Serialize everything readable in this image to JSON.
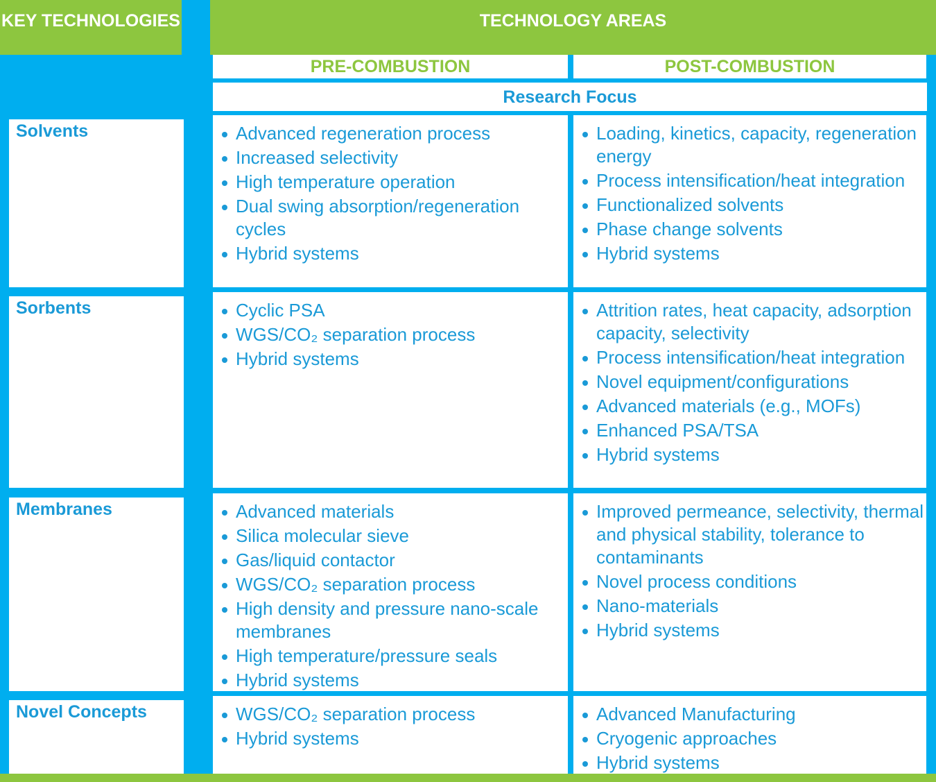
{
  "header": {
    "key_technologies": "KEY TECHNOLOGIES",
    "technology_areas": "TECHNOLOGY AREAS",
    "pre_combustion": "PRE-COMBUSTION",
    "post_combustion": "POST-COMBUSTION",
    "research_focus": "Research Focus"
  },
  "rows": [
    {
      "label": "Solvents",
      "pre": [
        "Advanced regeneration process",
        "Increased selectivity",
        "High temperature operation",
        "Dual swing absorption/regeneration cycles",
        "Hybrid systems"
      ],
      "post": [
        "Loading, kinetics, capacity, regeneration energy",
        "Process intensification/heat integration",
        "Functionalized solvents",
        "Phase change solvents",
        "Hybrid systems"
      ]
    },
    {
      "label": "Sorbents",
      "pre": [
        "Cyclic PSA",
        "WGS/CO₂ separation process",
        "Hybrid systems"
      ],
      "post": [
        "Attrition rates, heat capacity, adsorption capacity, selectivity",
        "Process intensification/heat integration",
        "Novel equipment/configurations",
        "Advanced materials (e.g., MOFs)",
        "Enhanced PSA/TSA",
        "Hybrid systems"
      ]
    },
    {
      "label": "Membranes",
      "pre": [
        "Advanced materials",
        "Silica molecular sieve",
        "Gas/liquid contactor",
        "WGS/CO₂ separation process",
        "High density and pressure nano-scale membranes",
        "High temperature/pressure seals",
        "Hybrid systems"
      ],
      "post": [
        "Improved permeance, selectivity, thermal and physical stability, tolerance to contaminants",
        "Novel process conditions",
        "Nano-materials",
        "Hybrid systems"
      ]
    },
    {
      "label": "Novel Concepts",
      "pre": [
        "WGS/CO₂ separation process",
        "Hybrid systems"
      ],
      "post": [
        "Advanced Manufacturing",
        "Cryogenic approaches",
        "Hybrid systems"
      ]
    }
  ]
}
